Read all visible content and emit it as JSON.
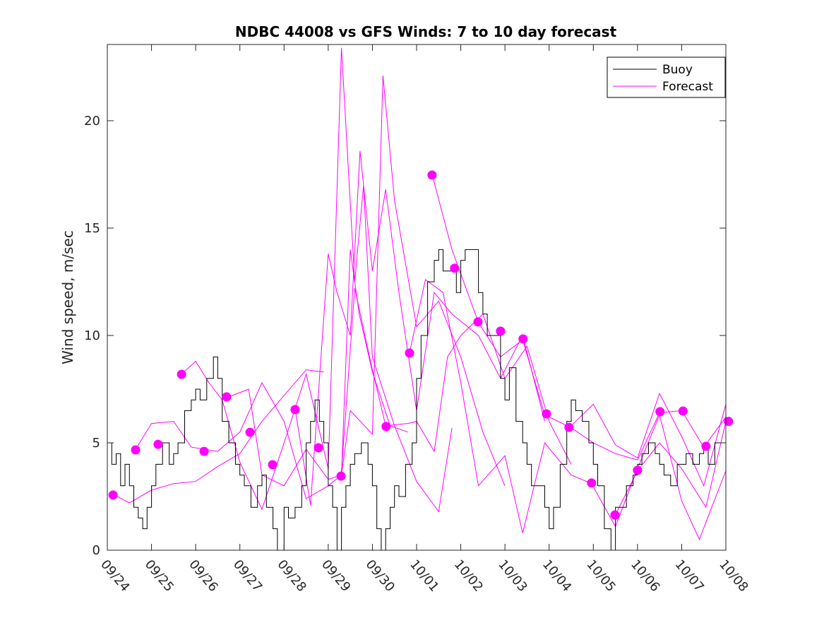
{
  "chart_data": {
    "type": "line",
    "title": "NDBC 44008 vs GFS Winds: 7 to 10 day forecast",
    "xlabel": "",
    "ylabel": "Wind speed, m/sec",
    "xlim_days": [
      0,
      14
    ],
    "ylim": [
      0,
      23.55
    ],
    "x_tick_labels": [
      "09/24",
      "09/25",
      "09/26",
      "09/27",
      "09/28",
      "09/29",
      "09/30",
      "10/01",
      "10/02",
      "10/03",
      "10/04",
      "10/05",
      "10/06",
      "10/07",
      "10/08"
    ],
    "y_ticks": [
      0,
      5,
      10,
      15,
      20
    ],
    "legend": {
      "position": "top-right",
      "entries": [
        "Buoy",
        "Forecast"
      ]
    },
    "colors": {
      "buoy": "#000000",
      "forecast": "#ff00ff"
    },
    "buoy": [
      [
        0,
        5
      ],
      [
        0.1,
        4
      ],
      [
        0.2,
        4.5
      ],
      [
        0.3,
        3
      ],
      [
        0.4,
        4
      ],
      [
        0.5,
        3
      ],
      [
        0.6,
        2
      ],
      [
        0.7,
        1.5
      ],
      [
        0.8,
        1
      ],
      [
        0.9,
        2
      ],
      [
        1.0,
        3
      ],
      [
        1.1,
        4
      ],
      [
        1.25,
        5
      ],
      [
        1.4,
        4
      ],
      [
        1.5,
        4.5
      ],
      [
        1.6,
        5
      ],
      [
        1.75,
        6.5
      ],
      [
        1.9,
        7
      ],
      [
        2.0,
        7.5
      ],
      [
        2.1,
        7
      ],
      [
        2.25,
        8
      ],
      [
        2.4,
        9
      ],
      [
        2.5,
        8
      ],
      [
        2.6,
        6
      ],
      [
        2.75,
        5
      ],
      [
        2.9,
        4
      ],
      [
        3.0,
        3.5
      ],
      [
        3.1,
        3
      ],
      [
        3.25,
        2
      ],
      [
        3.4,
        3
      ],
      [
        3.5,
        3.5
      ],
      [
        3.6,
        2
      ],
      [
        3.75,
        1
      ],
      [
        3.85,
        0
      ],
      [
        4.0,
        2
      ],
      [
        4.1,
        1.5
      ],
      [
        4.25,
        2
      ],
      [
        4.4,
        3
      ],
      [
        4.5,
        5
      ],
      [
        4.6,
        6
      ],
      [
        4.7,
        7
      ],
      [
        4.8,
        6
      ],
      [
        4.9,
        5
      ],
      [
        5.0,
        3
      ],
      [
        5.1,
        2
      ],
      [
        5.2,
        0
      ],
      [
        5.3,
        2
      ],
      [
        5.4,
        3
      ],
      [
        5.5,
        4
      ],
      [
        5.6,
        4.5
      ],
      [
        5.75,
        5
      ],
      [
        5.9,
        4
      ],
      [
        6.0,
        3
      ],
      [
        6.1,
        1
      ],
      [
        6.2,
        0
      ],
      [
        6.3,
        1
      ],
      [
        6.4,
        2
      ],
      [
        6.5,
        3
      ],
      [
        6.6,
        2.5
      ],
      [
        6.75,
        4
      ],
      [
        6.9,
        5
      ],
      [
        7.0,
        8
      ],
      [
        7.1,
        10
      ],
      [
        7.25,
        12.5
      ],
      [
        7.4,
        13.5
      ],
      [
        7.5,
        14
      ],
      [
        7.6,
        13
      ],
      [
        7.75,
        13
      ],
      [
        7.9,
        12
      ],
      [
        8.0,
        13.5
      ],
      [
        8.1,
        14
      ],
      [
        8.25,
        14
      ],
      [
        8.4,
        12
      ],
      [
        8.5,
        11
      ],
      [
        8.6,
        10
      ],
      [
        8.75,
        10
      ],
      [
        8.9,
        8
      ],
      [
        9.0,
        7
      ],
      [
        9.1,
        8.5
      ],
      [
        9.25,
        6
      ],
      [
        9.4,
        5
      ],
      [
        9.5,
        4
      ],
      [
        9.6,
        3
      ],
      [
        9.75,
        3
      ],
      [
        9.9,
        2
      ],
      [
        10.0,
        1
      ],
      [
        10.1,
        2
      ],
      [
        10.25,
        4
      ],
      [
        10.4,
        6
      ],
      [
        10.5,
        7
      ],
      [
        10.6,
        6.5
      ],
      [
        10.75,
        6
      ],
      [
        10.9,
        5
      ],
      [
        11.0,
        4
      ],
      [
        11.1,
        3
      ],
      [
        11.25,
        1
      ],
      [
        11.4,
        0
      ],
      [
        11.5,
        2
      ],
      [
        11.6,
        2
      ],
      [
        11.75,
        3
      ],
      [
        11.9,
        3.5
      ],
      [
        12.0,
        4
      ],
      [
        12.1,
        4.5
      ],
      [
        12.25,
        5
      ],
      [
        12.4,
        4.5
      ],
      [
        12.5,
        4
      ],
      [
        12.6,
        3.5
      ],
      [
        12.75,
        3
      ],
      [
        12.9,
        4
      ],
      [
        13.0,
        4
      ],
      [
        13.1,
        4.5
      ],
      [
        13.25,
        4
      ],
      [
        13.4,
        4.5
      ],
      [
        13.5,
        5
      ],
      [
        13.6,
        4
      ],
      [
        13.75,
        5
      ],
      [
        13.9,
        5
      ],
      [
        14.0,
        5
      ]
    ],
    "forecast_lines": [
      [
        [
          0.13,
          2.6
        ],
        [
          0.5,
          2.2
        ],
        [
          1,
          2.8
        ],
        [
          1.5,
          3.1
        ],
        [
          2,
          3.2
        ],
        [
          2.5,
          3.9
        ],
        [
          3,
          4.5
        ],
        [
          3.5,
          6
        ],
        [
          4,
          7.2
        ],
        [
          4.5,
          8.4
        ],
        [
          4.9,
          8.3
        ]
      ],
      [
        [
          0.64,
          4.7
        ],
        [
          1,
          5.9
        ],
        [
          1.5,
          6
        ],
        [
          1.9,
          4.8
        ],
        [
          2.5,
          4.6
        ],
        [
          3,
          5.5
        ],
        [
          3.5,
          7.8
        ],
        [
          4,
          6
        ],
        [
          4.5,
          2.4
        ],
        [
          5,
          3
        ],
        [
          5.3,
          3.5
        ],
        [
          5.5,
          14
        ],
        [
          5.7,
          11
        ],
        [
          6,
          8.3
        ],
        [
          6.4,
          5.8
        ],
        [
          6.8,
          5.5
        ]
      ],
      [
        [
          1.68,
          8.2
        ],
        [
          2,
          8.8
        ],
        [
          2.3,
          7.8
        ],
        [
          2.6,
          7
        ],
        [
          3,
          4.1
        ],
        [
          3.5,
          1.9
        ],
        [
          4,
          5
        ],
        [
          4.5,
          8.2
        ],
        [
          5,
          3.8
        ],
        [
          5.3,
          23.4
        ],
        [
          5.6,
          12.5
        ],
        [
          5.8,
          17
        ],
        [
          6,
          9
        ],
        [
          6.5,
          5.8
        ],
        [
          7,
          3.2
        ],
        [
          7.5,
          1.8
        ],
        [
          7.8,
          5.7
        ]
      ],
      [
        [
          2.7,
          7.1
        ],
        [
          3.2,
          7.5
        ],
        [
          3.5,
          3.5
        ],
        [
          4,
          3
        ],
        [
          4.5,
          4.7
        ],
        [
          5,
          3.3
        ],
        [
          5.3,
          3.5
        ],
        [
          5.5,
          6.5
        ],
        [
          6,
          5.4
        ],
        [
          6.24,
          22.1
        ],
        [
          6.5,
          16.3
        ],
        [
          7,
          10.4
        ],
        [
          7.5,
          11.6
        ],
        [
          8,
          9
        ],
        [
          8.5,
          5.5
        ],
        [
          9,
          3
        ]
      ],
      [
        [
          4.25,
          6.6
        ],
        [
          4.6,
          2.1
        ],
        [
          5.0,
          13.8
        ],
        [
          5.2,
          12
        ],
        [
          5.5,
          10
        ],
        [
          5.72,
          18.6
        ],
        [
          6,
          13
        ],
        [
          6.3,
          16.8
        ],
        [
          6.6,
          12
        ],
        [
          7,
          6.5
        ],
        [
          7.4,
          12
        ],
        [
          7.8,
          11
        ],
        [
          8.4,
          10
        ],
        [
          8.9,
          8
        ],
        [
          9.4,
          10
        ],
        [
          9.9,
          6
        ]
      ],
      [
        [
          5.29,
          3.4
        ],
        [
          5.6,
          12.2
        ],
        [
          6,
          8.4
        ],
        [
          6.3,
          5.8
        ],
        [
          6.8,
          5.9
        ],
        [
          7,
          6
        ],
        [
          7.4,
          4.6
        ],
        [
          7.7,
          9
        ],
        [
          8,
          10
        ],
        [
          8.5,
          11
        ],
        [
          9,
          8
        ],
        [
          9.5,
          9.5
        ],
        [
          10,
          6
        ],
        [
          10.5,
          4
        ]
      ],
      [
        [
          7.35,
          17.5
        ],
        [
          7.8,
          14
        ],
        [
          8.4,
          10.6
        ],
        [
          8.9,
          9
        ],
        [
          9.4,
          9.8
        ],
        [
          9.9,
          6.3
        ],
        [
          10.5,
          5.7
        ],
        [
          11,
          5
        ],
        [
          11.5,
          4.5
        ],
        [
          12,
          4.2
        ],
        [
          12.5,
          6.4
        ],
        [
          13,
          6.5
        ],
        [
          13.5,
          4.8
        ],
        [
          14,
          6.2
        ]
      ],
      [
        [
          6.84,
          9.2
        ],
        [
          7.2,
          12.6
        ],
        [
          7.6,
          12
        ],
        [
          8,
          7.8
        ],
        [
          8.4,
          3
        ],
        [
          9,
          4.4
        ],
        [
          9.4,
          0.8
        ],
        [
          9.9,
          5
        ],
        [
          10.5,
          3.5
        ],
        [
          10.96,
          3.1
        ],
        [
          11.5,
          1.1
        ],
        [
          12,
          3.8
        ],
        [
          12.5,
          6.3
        ],
        [
          13,
          2.3
        ],
        [
          13.4,
          0.5
        ],
        [
          14,
          3.7
        ]
      ],
      [
        [
          10.45,
          5.7
        ],
        [
          11,
          6.8
        ],
        [
          11.5,
          4.9
        ],
        [
          12,
          4.3
        ],
        [
          12.5,
          7.3
        ],
        [
          13,
          5.3
        ],
        [
          13.5,
          3
        ],
        [
          14,
          6.8
        ]
      ],
      [
        [
          11.49,
          1.6
        ],
        [
          12,
          3.7
        ],
        [
          12.5,
          5
        ],
        [
          13,
          3.8
        ],
        [
          13.55,
          2
        ],
        [
          14,
          6
        ]
      ]
    ],
    "forecast_start_points": [
      [
        0.13,
        2.57
      ],
      [
        0.64,
        4.67
      ],
      [
        1.15,
        4.93
      ],
      [
        1.68,
        8.19
      ],
      [
        2.19,
        4.6
      ],
      [
        2.7,
        7.14
      ],
      [
        3.23,
        5.49
      ],
      [
        3.74,
        3.98
      ],
      [
        4.25,
        6.55
      ],
      [
        4.78,
        4.77
      ],
      [
        5.29,
        3.45
      ],
      [
        6.31,
        5.76
      ],
      [
        6.84,
        9.18
      ],
      [
        7.35,
        17.47
      ],
      [
        7.86,
        13.13
      ],
      [
        8.39,
        10.63
      ],
      [
        8.9,
        10.2
      ],
      [
        9.41,
        9.84
      ],
      [
        9.94,
        6.35
      ],
      [
        10.45,
        5.72
      ],
      [
        10.96,
        3.13
      ],
      [
        11.49,
        1.64
      ],
      [
        12.0,
        3.72
      ],
      [
        12.51,
        6.45
      ],
      [
        13.03,
        6.48
      ],
      [
        13.55,
        4.84
      ],
      [
        14.06,
        6.0
      ]
    ]
  }
}
